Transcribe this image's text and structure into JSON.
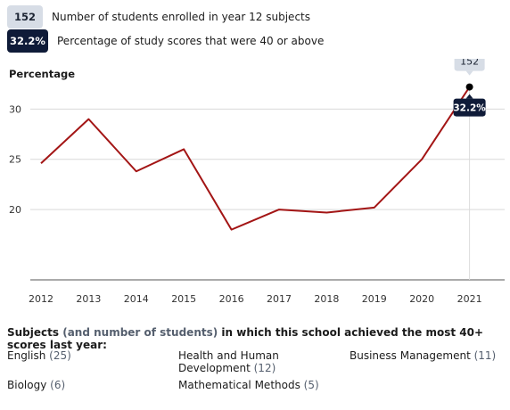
{
  "legend": {
    "count_badge": "152",
    "count_text": "Number of students enrolled in year 12 subjects",
    "pct_badge": "32.2%",
    "pct_text": "Percentage of study scores that were 40 or above"
  },
  "colors": {
    "line": "#a31515",
    "badge_dark": "#0f1b38",
    "badge_light": "#d7dde6",
    "grid": "#d9d9d9"
  },
  "chart_data": {
    "type": "line",
    "ylabel": "Percentage",
    "x": [
      "2012",
      "2013",
      "2014",
      "2015",
      "2016",
      "2017",
      "2018",
      "2019",
      "2020",
      "2021"
    ],
    "values": [
      24.6,
      29.0,
      23.8,
      26.0,
      18.0,
      20.0,
      19.7,
      20.2,
      25.0,
      32.2
    ],
    "yticks": [
      20,
      25,
      30
    ],
    "ylim": [
      13,
      35
    ],
    "grid": true,
    "highlight": {
      "x": "2021",
      "count_label": "152",
      "value_label": "32.2%"
    }
  },
  "subjects": {
    "title_a": "Subjects",
    "title_b": "(and number of students)",
    "title_c": "in which this school achieved the most 40+ scores last year:",
    "items": [
      {
        "name": "English",
        "count": "(25)"
      },
      {
        "name": "Health and Human Development",
        "count": "(12)"
      },
      {
        "name": "Business Management",
        "count": "(11)"
      },
      {
        "name": "Biology",
        "count": "(6)"
      },
      {
        "name": "Mathematical Methods",
        "count": "(5)"
      }
    ]
  }
}
